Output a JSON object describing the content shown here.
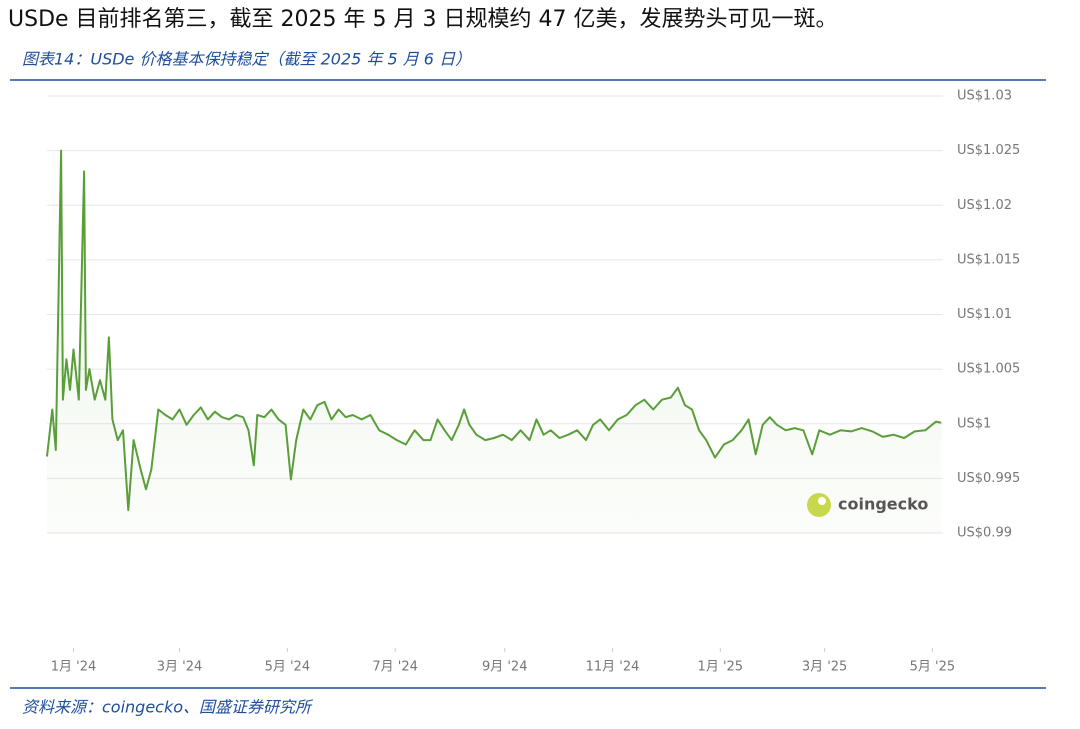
{
  "heading": "USDe 目前排名第三，截至 2025 年 5 月 3 日规模约 47 亿美，发展势头可见一斑。",
  "caption": "图表14：USDe 价格基本保持稳定（截至 2025 年 5 月 6 日）",
  "source": "资料来源：coingecko、国盛证券研究所",
  "chart_data": {
    "type": "line",
    "watermark": "coingecko",
    "grid": true,
    "x": [
      -3,
      0,
      2,
      5,
      6,
      8,
      10,
      12,
      15,
      18,
      19,
      21,
      24,
      27,
      30,
      32,
      34,
      37,
      40,
      43,
      46,
      50,
      53,
      56,
      60,
      64,
      68,
      72,
      76,
      80,
      84,
      88,
      92,
      96,
      100,
      104,
      108,
      111,
      114,
      116,
      120,
      124,
      128,
      132,
      135,
      138,
      142,
      146,
      150,
      154,
      158,
      162,
      166,
      170,
      175,
      180,
      185,
      190,
      195,
      200,
      205,
      210,
      214,
      218,
      222,
      226,
      230,
      233,
      236,
      240,
      245,
      250,
      255,
      260,
      265,
      270,
      274,
      278,
      282,
      287,
      292,
      297,
      302,
      306,
      310,
      315,
      320,
      325,
      330,
      335,
      340,
      345,
      350,
      354,
      358,
      362,
      366,
      370,
      375,
      380,
      385,
      390,
      394,
      398,
      402,
      406,
      410,
      415,
      420,
      425,
      430,
      434,
      440,
      446,
      452,
      458,
      464,
      470,
      476,
      482,
      488,
      494,
      500,
      503
    ],
    "series": [
      {
        "color": "#5a9e3a",
        "values": [
          0.997,
          1.0013,
          0.9976,
          1.025,
          1.0022,
          1.0059,
          1.0031,
          1.0068,
          1.0022,
          1.0231,
          1.0031,
          1.005,
          1.0022,
          1.004,
          1.0022,
          1.0079,
          1.0004,
          0.9985,
          0.9994,
          0.9921,
          0.9985,
          0.9958,
          0.994,
          0.9958,
          1.0013,
          1.0008,
          1.0004,
          1.0013,
          0.9999,
          1.0008,
          1.0015,
          1.0004,
          1.0011,
          1.0006,
          1.0004,
          1.0008,
          1.0006,
          0.9994,
          0.9962,
          1.0008,
          1.0006,
          1.0013,
          1.0004,
          0.9999,
          0.9949,
          0.9985,
          1.0013,
          1.0004,
          1.0017,
          1.002,
          1.0004,
          1.0013,
          1.0006,
          1.0008,
          1.0004,
          1.0008,
          0.9994,
          0.999,
          0.9985,
          0.9981,
          0.9994,
          0.9985,
          0.9985,
          1.0004,
          0.9994,
          0.9985,
          0.9999,
          1.0013,
          0.9999,
          0.999,
          0.9985,
          0.9987,
          0.999,
          0.9985,
          0.9994,
          0.9985,
          1.0004,
          0.999,
          0.9994,
          0.9987,
          0.999,
          0.9994,
          0.9985,
          0.9999,
          1.0004,
          0.9994,
          1.0004,
          1.0008,
          1.0017,
          1.0022,
          1.0013,
          1.0022,
          1.0024,
          1.0033,
          1.0017,
          1.0013,
          0.9994,
          0.9985,
          0.9969,
          0.9981,
          0.9985,
          0.9994,
          1.0004,
          0.9972,
          0.9999,
          1.0006,
          0.9999,
          0.9994,
          0.9996,
          0.9994,
          0.9972,
          0.9994,
          0.999,
          0.9994,
          0.9993,
          0.9996,
          0.9993,
          0.9988,
          0.999,
          0.9987,
          0.9993,
          0.9994,
          1.0002,
          1.0001
        ]
      }
    ],
    "xlim": [
      -3,
      504
    ],
    "xticks": [
      {
        "value": 12,
        "label": "1月 '24"
      },
      {
        "value": 72,
        "label": "3月 '24"
      },
      {
        "value": 133,
        "label": "5月 '24"
      },
      {
        "value": 194,
        "label": "7月 '24"
      },
      {
        "value": 256,
        "label": "9月 '24"
      },
      {
        "value": 317,
        "label": "11月 '24"
      },
      {
        "value": 378,
        "label": "1月 '25"
      },
      {
        "value": 437,
        "label": "3月 '25"
      },
      {
        "value": 498,
        "label": "5月 '25"
      }
    ],
    "ylim": [
      0.99,
      1.03
    ],
    "yticks": [
      {
        "value": 0.99,
        "label": "US$0.99"
      },
      {
        "value": 0.995,
        "label": "US$0.995"
      },
      {
        "value": 1,
        "label": "US$1"
      },
      {
        "value": 1.005,
        "label": "US$1.005"
      },
      {
        "value": 1.01,
        "label": "US$1.01"
      },
      {
        "value": 1.015,
        "label": "US$1.015"
      },
      {
        "value": 1.02,
        "label": "US$1.02"
      },
      {
        "value": 1.025,
        "label": "US$1.025"
      },
      {
        "value": 1.03,
        "label": "US$1.03"
      }
    ]
  }
}
